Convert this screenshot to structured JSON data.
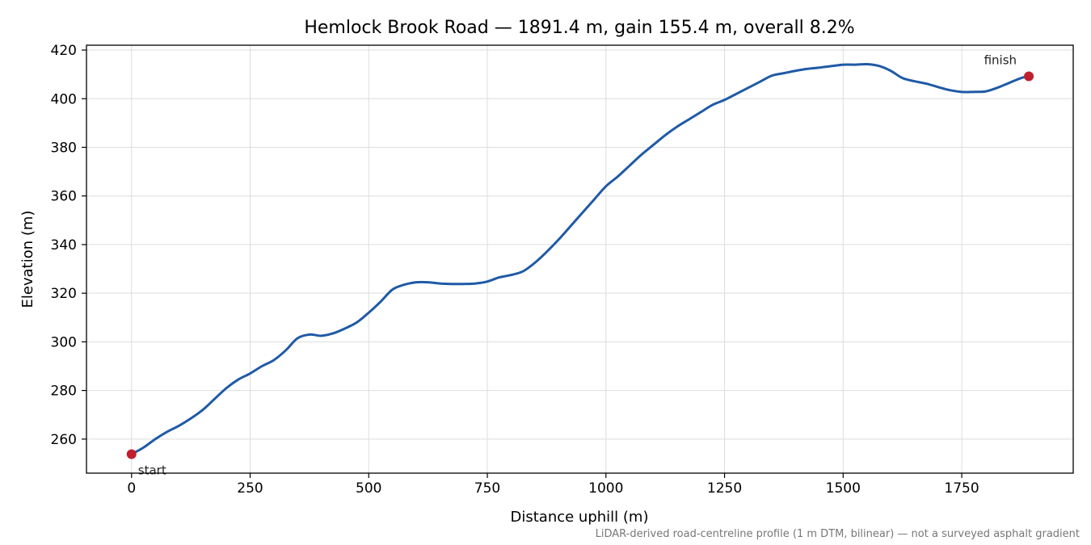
{
  "chart_data": {
    "type": "line",
    "title": "Hemlock Brook Road — 1891.4 m, gain 155.4 m, overall 8.2%",
    "xlabel": "Distance uphill (m)",
    "ylabel": "Elevation (m)",
    "footnote": "LiDAR-derived road-centreline profile (1 m DTM, bilinear) — not a surveyed asphalt gradient",
    "xlim": [
      -95,
      1985
    ],
    "ylim": [
      246,
      422
    ],
    "x_ticks": [
      0,
      250,
      500,
      750,
      1000,
      1250,
      1500,
      1750
    ],
    "y_ticks": [
      260,
      280,
      300,
      320,
      340,
      360,
      380,
      400,
      420
    ],
    "grid": true,
    "line_color": "#1f5aa6",
    "marker_color": "#c0202e",
    "series": [
      {
        "x": [
          0,
          25,
          50,
          75,
          100,
          125,
          150,
          175,
          200,
          225,
          250,
          275,
          300,
          325,
          350,
          375,
          400,
          425,
          450,
          475,
          500,
          525,
          550,
          575,
          600,
          625,
          650,
          675,
          700,
          725,
          750,
          775,
          800,
          825,
          850,
          875,
          900,
          925,
          950,
          975,
          1000,
          1025,
          1050,
          1075,
          1100,
          1125,
          1150,
          1175,
          1200,
          1225,
          1250,
          1275,
          1300,
          1325,
          1350,
          1375,
          1400,
          1425,
          1450,
          1475,
          1500,
          1525,
          1550,
          1575,
          1600,
          1625,
          1650,
          1675,
          1700,
          1725,
          1750,
          1775,
          1800,
          1825,
          1850,
          1875,
          1891.4
        ],
        "values": [
          253.8,
          256.5,
          260,
          263,
          265.5,
          268.5,
          272,
          276.5,
          281,
          284.5,
          287,
          290,
          292.5,
          296.5,
          301.5,
          303,
          302.5,
          303.5,
          305.5,
          308,
          312,
          316.5,
          321.5,
          323.5,
          324.5,
          324.5,
          324,
          323.8,
          323.8,
          324,
          324.8,
          326.5,
          327.5,
          329,
          332.5,
          337,
          342,
          347.5,
          353,
          358.5,
          364,
          368,
          372.5,
          377,
          381,
          385,
          388.5,
          391.5,
          394.5,
          397.5,
          399.5,
          402,
          404.5,
          407,
          409.5,
          410.5,
          411.5,
          412.3,
          412.8,
          413.4,
          414,
          414,
          414.2,
          413.5,
          411.5,
          408.5,
          407.2,
          406.2,
          404.8,
          403.5,
          402.8,
          402.8,
          403,
          404.5,
          406.5,
          408.5,
          409.2
        ]
      }
    ],
    "annotations": [
      {
        "label": "start",
        "x": 0,
        "y": 253.8
      },
      {
        "label": "finish",
        "x": 1891.4,
        "y": 409.2
      }
    ]
  }
}
